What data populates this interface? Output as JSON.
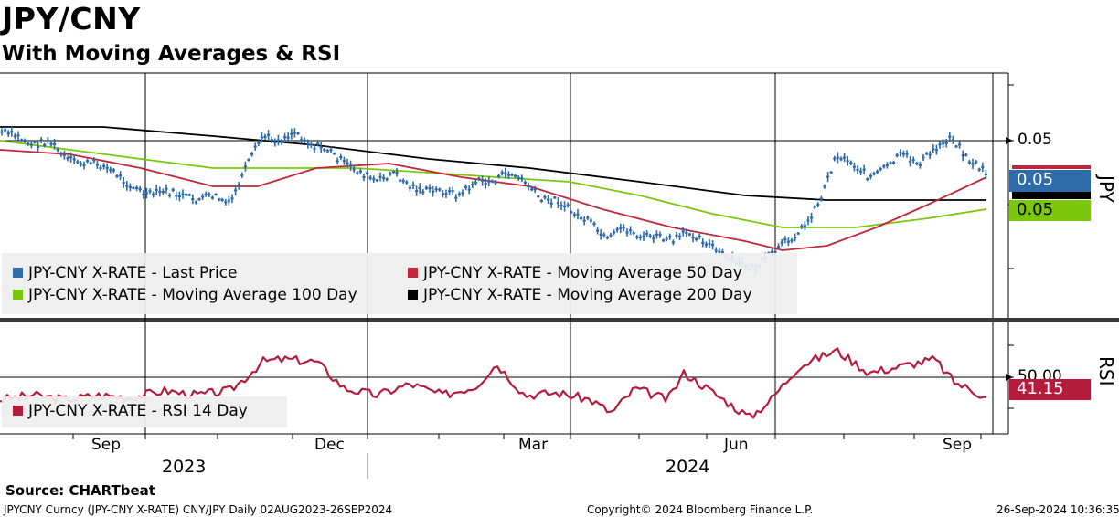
{
  "header": {
    "title": "JPY/CNY",
    "subtitle": "With Moving Averages & RSI"
  },
  "colors": {
    "last_price": "#2e6ba8",
    "ma50": "#c0273a",
    "ma100": "#7ac70c",
    "ma200": "#000000",
    "rsi": "#b51c3c"
  },
  "chart_data": [
    {
      "type": "line",
      "panel": "price",
      "series": [
        {
          "name": "JPY-CNY X-RATE - Last Price",
          "color": "#2e6ba8"
        },
        {
          "name": "JPY-CNY X-RATE - Moving Average 50 Day",
          "color": "#c0273a"
        },
        {
          "name": "JPY-CNY X-RATE - Moving Average 100 Day",
          "color": "#7ac70c"
        },
        {
          "name": "JPY-CNY X-RATE - Moving Average 200 Day",
          "color": "#000000"
        }
      ],
      "y_tick_labels": [
        "0.05"
      ],
      "right_axis_title": "JPY",
      "last_value_tags": [
        {
          "label": "0.05",
          "color": "#2e6ba8"
        },
        {
          "label": "0.05",
          "color": "#7ac70c"
        }
      ],
      "legend_placement": "bottom-left",
      "price_series": [
        [
          "2023-08-02",
          0.0502
        ],
        [
          "2023-08-09",
          0.0501
        ],
        [
          "2023-08-16",
          0.0499
        ],
        [
          "2023-08-23",
          0.05
        ],
        [
          "2023-08-30",
          0.0496
        ],
        [
          "2023-09-06",
          0.0495
        ],
        [
          "2023-09-13",
          0.0495
        ],
        [
          "2023-09-20",
          0.0493
        ],
        [
          "2023-09-27",
          0.049
        ],
        [
          "2023-10-04",
          0.0488
        ],
        [
          "2023-10-11",
          0.0489
        ],
        [
          "2023-10-18",
          0.0488
        ],
        [
          "2023-10-25",
          0.0487
        ],
        [
          "2023-11-01",
          0.0488
        ],
        [
          "2023-11-08",
          0.0486
        ],
        [
          "2023-11-15",
          0.0494
        ],
        [
          "2023-11-22",
          0.0501
        ],
        [
          "2023-11-29",
          0.05
        ],
        [
          "2023-12-06",
          0.0502
        ],
        [
          "2023-12-13",
          0.0499
        ],
        [
          "2023-12-20",
          0.0498
        ],
        [
          "2023-12-27",
          0.0495
        ],
        [
          "2024-01-03",
          0.0493
        ],
        [
          "2024-01-10",
          0.0491
        ],
        [
          "2024-01-17",
          0.0493
        ],
        [
          "2024-01-24",
          0.049
        ],
        [
          "2024-01-31",
          0.0489
        ],
        [
          "2024-02-07",
          0.0489
        ],
        [
          "2024-02-14",
          0.0488
        ],
        [
          "2024-02-21",
          0.0491
        ],
        [
          "2024-02-28",
          0.0491
        ],
        [
          "2024-03-06",
          0.0493
        ],
        [
          "2024-03-13",
          0.0491
        ],
        [
          "2024-03-20",
          0.0487
        ],
        [
          "2024-03-27",
          0.0487
        ],
        [
          "2024-04-03",
          0.0484
        ],
        [
          "2024-04-10",
          0.0482
        ],
        [
          "2024-04-17",
          0.0478
        ],
        [
          "2024-04-24",
          0.0481
        ],
        [
          "2024-05-01",
          0.0479
        ],
        [
          "2024-05-08",
          0.0479
        ],
        [
          "2024-05-15",
          0.0478
        ],
        [
          "2024-05-22",
          0.048
        ],
        [
          "2024-05-29",
          0.0478
        ],
        [
          "2024-06-05",
          0.0475
        ],
        [
          "2024-06-12",
          0.0473
        ],
        [
          "2024-06-19",
          0.0472
        ],
        [
          "2024-06-26",
          0.0475
        ],
        [
          "2024-07-03",
          0.0478
        ],
        [
          "2024-07-10",
          0.0481
        ],
        [
          "2024-07-17",
          0.0487
        ],
        [
          "2024-07-24",
          0.0497
        ],
        [
          "2024-07-31",
          0.0495
        ],
        [
          "2024-08-07",
          0.0492
        ],
        [
          "2024-08-14",
          0.0494
        ],
        [
          "2024-08-21",
          0.0497
        ],
        [
          "2024-08-28",
          0.0495
        ],
        [
          "2024-09-04",
          0.0498
        ],
        [
          "2024-09-11",
          0.0501
        ],
        [
          "2024-09-18",
          0.0496
        ],
        [
          "2024-09-26",
          0.0493
        ]
      ],
      "ma50_series": [
        [
          "2023-08-02",
          0.0498
        ],
        [
          "2023-09-01",
          0.0497
        ],
        [
          "2023-10-01",
          0.0494
        ],
        [
          "2023-11-01",
          0.049
        ],
        [
          "2023-11-20",
          0.049
        ],
        [
          "2023-12-15",
          0.0494
        ],
        [
          "2024-01-15",
          0.0495
        ],
        [
          "2024-02-15",
          0.0492
        ],
        [
          "2024-03-15",
          0.049
        ],
        [
          "2024-04-15",
          0.0485
        ],
        [
          "2024-05-15",
          0.0481
        ],
        [
          "2024-06-15",
          0.0478
        ],
        [
          "2024-07-01",
          0.0476
        ],
        [
          "2024-07-20",
          0.0477
        ],
        [
          "2024-08-10",
          0.0481
        ],
        [
          "2024-09-01",
          0.0486
        ],
        [
          "2024-09-26",
          0.0492
        ]
      ],
      "ma100_series": [
        [
          "2023-08-02",
          0.05
        ],
        [
          "2023-09-01",
          0.0498
        ],
        [
          "2023-10-01",
          0.0496
        ],
        [
          "2023-11-01",
          0.0494
        ],
        [
          "2023-12-01",
          0.0494
        ],
        [
          "2024-01-01",
          0.0494
        ],
        [
          "2024-02-01",
          0.0493
        ],
        [
          "2024-03-01",
          0.0492
        ],
        [
          "2024-04-01",
          0.0491
        ],
        [
          "2024-05-01",
          0.0488
        ],
        [
          "2024-06-01",
          0.0484
        ],
        [
          "2024-07-01",
          0.0481
        ],
        [
          "2024-08-01",
          0.0481
        ],
        [
          "2024-09-01",
          0.0483
        ],
        [
          "2024-09-26",
          0.0485
        ]
      ],
      "ma200_series": [
        [
          "2023-08-02",
          0.0503
        ],
        [
          "2023-09-15",
          0.0503
        ],
        [
          "2023-11-01",
          0.0501
        ],
        [
          "2023-12-15",
          0.0499
        ],
        [
          "2024-02-01",
          0.0496
        ],
        [
          "2024-03-15",
          0.0494
        ],
        [
          "2024-05-01",
          0.0491
        ],
        [
          "2024-06-15",
          0.0488
        ],
        [
          "2024-07-20",
          0.0487
        ],
        [
          "2024-09-26",
          0.0487
        ]
      ]
    },
    {
      "type": "line",
      "panel": "rsi",
      "series": [
        {
          "name": "JPY-CNY X-RATE - RSI 14 Day",
          "color": "#b51c3c"
        }
      ],
      "y_tick_labels": [
        "50.00"
      ],
      "right_axis_title": "RSI",
      "last_value_tag": {
        "label": "41.15",
        "color": "#b51c3c"
      },
      "legend_placement": "bottom-left",
      "rsi_series": [
        [
          "2023-08-02",
          40
        ],
        [
          "2023-08-16",
          42
        ],
        [
          "2023-08-30",
          40
        ],
        [
          "2023-09-13",
          42
        ],
        [
          "2023-09-27",
          41
        ],
        [
          "2023-10-11",
          44
        ],
        [
          "2023-10-25",
          42
        ],
        [
          "2023-11-08",
          44
        ],
        [
          "2023-11-15",
          50
        ],
        [
          "2023-11-22",
          57
        ],
        [
          "2023-12-01",
          58
        ],
        [
          "2023-12-15",
          57
        ],
        [
          "2023-12-27",
          45
        ],
        [
          "2024-01-10",
          42
        ],
        [
          "2024-01-24",
          47
        ],
        [
          "2024-02-07",
          42
        ],
        [
          "2024-02-21",
          46
        ],
        [
          "2024-03-01",
          56
        ],
        [
          "2024-03-13",
          42
        ],
        [
          "2024-03-27",
          43
        ],
        [
          "2024-04-10",
          40
        ],
        [
          "2024-04-19",
          34
        ],
        [
          "2024-04-29",
          45
        ],
        [
          "2024-05-13",
          40
        ],
        [
          "2024-05-20",
          52
        ],
        [
          "2024-06-03",
          42
        ],
        [
          "2024-06-17",
          32
        ],
        [
          "2024-06-26",
          40
        ],
        [
          "2024-07-08",
          55
        ],
        [
          "2024-07-24",
          62
        ],
        [
          "2024-08-07",
          52
        ],
        [
          "2024-08-21",
          55
        ],
        [
          "2024-09-04",
          58
        ],
        [
          "2024-09-12",
          48
        ],
        [
          "2024-09-26",
          41.15
        ]
      ]
    }
  ],
  "x_axis": {
    "month_labels": [
      "Sep",
      "Dec",
      "Mar",
      "Jun",
      "Sep"
    ],
    "year_labels": [
      "2023",
      "2024"
    ],
    "range": [
      "2023-08-02",
      "2024-09-26"
    ]
  },
  "footer": {
    "source": "Source: CHARTbeat",
    "left": "JPYCNY Curncy (JPY-CNY X-RATE) CNY/JPY  Daily 02AUG2023-26SEP2024",
    "center": "Copyright© 2024 Bloomberg Finance L.P.",
    "right": "26-Sep-2024 10:36:35"
  }
}
